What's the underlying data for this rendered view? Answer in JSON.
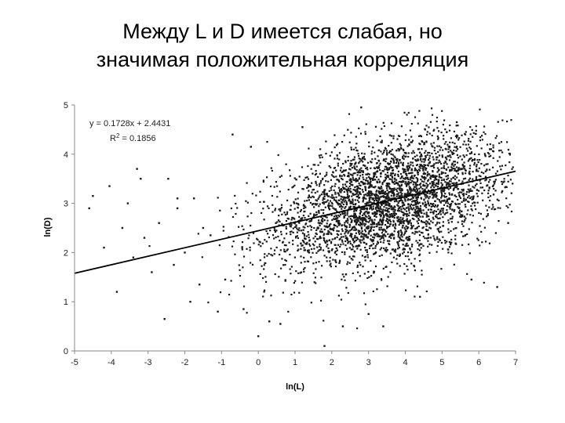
{
  "slide": {
    "title_line1": "Между L и D имеется слабая, но",
    "title_line2": "значимая положительная корреляция"
  },
  "chart_data": {
    "type": "scatter",
    "xlabel": "ln(L)",
    "ylabel": "ln(D)",
    "xlim": [
      -5,
      7
    ],
    "ylim": [
      0,
      5
    ],
    "xticks": [
      -5,
      -4,
      -3,
      -2,
      -1,
      0,
      1,
      2,
      3,
      4,
      5,
      6,
      7
    ],
    "yticks": [
      0,
      1,
      2,
      3,
      4,
      5
    ],
    "grid": false,
    "trendline": {
      "slope": 0.1728,
      "intercept": 2.4431,
      "x_range": [
        -5,
        7
      ]
    },
    "annotation": {
      "equation": "y = 0.1728x + 2.4431",
      "r2": "R² = 0.1856"
    },
    "point_color": "#1a1a1a",
    "line_color": "#000000",
    "approx_point_count": 3500,
    "distribution": {
      "mean_x": 3.5,
      "sd_x": 1.6,
      "mean_y": 3.05,
      "sd_y": 0.7,
      "correlation": 0.43
    },
    "outliers": [
      [
        -4.5,
        3.15
      ],
      [
        -4.6,
        2.9
      ],
      [
        -4.05,
        3.35
      ],
      [
        -4.2,
        2.1
      ],
      [
        -3.85,
        1.2
      ],
      [
        -3.7,
        2.5
      ],
      [
        -3.55,
        3.0
      ],
      [
        -3.4,
        1.9
      ],
      [
        -3.3,
        3.7
      ],
      [
        -3.2,
        3.5
      ],
      [
        -3.1,
        2.3
      ],
      [
        -2.9,
        1.6
      ],
      [
        -2.7,
        2.6
      ],
      [
        -2.55,
        0.65
      ],
      [
        -2.45,
        3.5
      ],
      [
        -2.3,
        1.75
      ],
      [
        -2.2,
        2.9
      ],
      [
        -2.0,
        2.0
      ],
      [
        -1.85,
        1.0
      ],
      [
        -1.75,
        3.1
      ],
      [
        -1.6,
        1.35
      ],
      [
        -1.5,
        2.5
      ],
      [
        -1.3,
        2.35
      ],
      [
        -1.1,
        0.8
      ],
      [
        -0.9,
        1.45
      ],
      [
        -0.7,
        4.4
      ],
      [
        -0.4,
        0.85
      ],
      [
        0.0,
        0.3
      ],
      [
        0.3,
        0.6
      ],
      [
        1.2,
        4.55
      ],
      [
        1.8,
        0.1
      ],
      [
        2.3,
        0.5
      ],
      [
        3.0,
        0.75
      ],
      [
        3.4,
        0.5
      ],
      [
        2.8,
        4.95
      ],
      [
        4.4,
        1.1
      ],
      [
        5.4,
        4.65
      ],
      [
        6.5,
        1.3
      ],
      [
        6.3,
        4.1
      ],
      [
        6.8,
        2.6
      ],
      [
        5.8,
        1.45
      ],
      [
        0.6,
        0.55
      ],
      [
        -2.2,
        3.1
      ],
      [
        -0.2,
        4.15
      ]
    ]
  }
}
